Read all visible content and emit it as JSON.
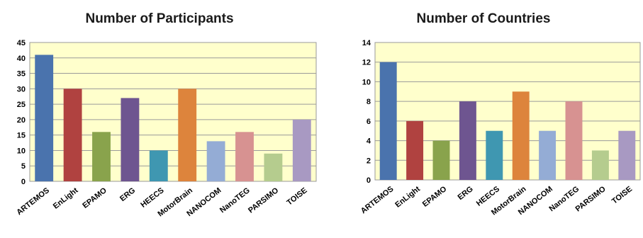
{
  "chart_data": [
    {
      "type": "bar",
      "title": "Number of Participants",
      "xlabel": "",
      "ylabel": "",
      "categories": [
        "ARTEMOS",
        "EnLight",
        "EPAMO",
        "ERG",
        "HEECS",
        "MotorBrain",
        "NANOCOM",
        "NanoTEG",
        "PARSIMO",
        "TOISE"
      ],
      "values": [
        41,
        30,
        16,
        27,
        10,
        30,
        13,
        16,
        9,
        20
      ],
      "colors": [
        "#4a73ad",
        "#b04240",
        "#89a34c",
        "#6e5590",
        "#3f97b1",
        "#dd843c",
        "#94acd5",
        "#d79291",
        "#b5cc8e",
        "#a899c2"
      ],
      "ylim": [
        0,
        45
      ],
      "yticks": [
        0,
        5,
        10,
        15,
        20,
        25,
        30,
        35,
        40,
        45
      ],
      "grid": true,
      "plot_background": "#ffffcc",
      "legend": "none"
    },
    {
      "type": "bar",
      "title": "Number of Countries",
      "xlabel": "",
      "ylabel": "",
      "categories": [
        "ARTEMOS",
        "EnLight",
        "EPAMO",
        "ERG",
        "HEECS",
        "MotorBrain",
        "NANOCOM",
        "NanoTEG",
        "PARSIMO",
        "TOISE"
      ],
      "values": [
        12,
        6,
        4,
        8,
        5,
        9,
        5,
        8,
        3,
        5
      ],
      "colors": [
        "#4a73ad",
        "#b04240",
        "#89a34c",
        "#6e5590",
        "#3f97b1",
        "#dd843c",
        "#94acd5",
        "#d79291",
        "#b5cc8e",
        "#a899c2"
      ],
      "ylim": [
        0,
        14
      ],
      "yticks": [
        0,
        2,
        4,
        6,
        8,
        10,
        12,
        14
      ],
      "grid": true,
      "plot_background": "#ffffcc",
      "legend": "none"
    }
  ]
}
